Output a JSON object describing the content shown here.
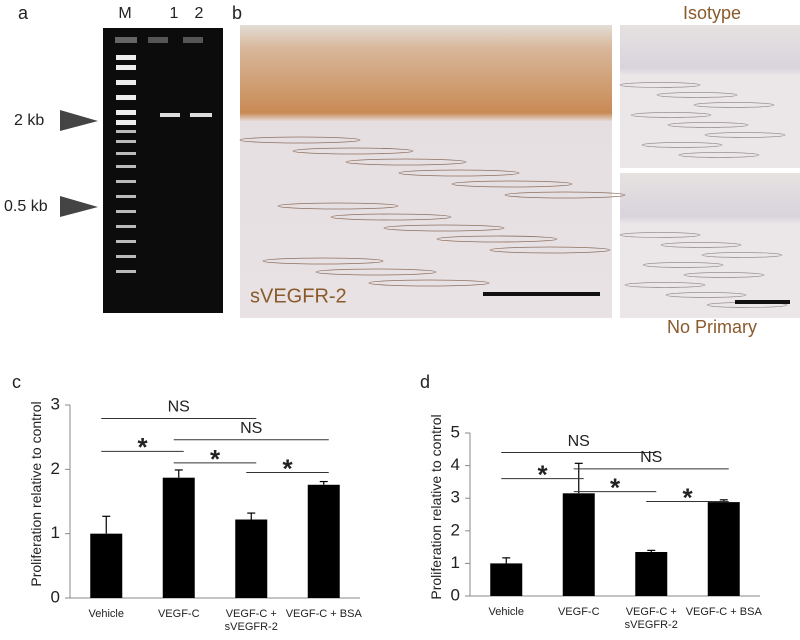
{
  "panel_a": {
    "label": "a",
    "lanes": [
      "M",
      "1",
      "2"
    ],
    "markers": [
      "2 kb",
      "0.5 kb"
    ]
  },
  "panel_b": {
    "label": "b",
    "main_caption": "sVEGFR-2",
    "top_caption": "Isotype",
    "bottom_caption": "No Primary"
  },
  "chart_data": [
    {
      "type": "bar",
      "label": "c",
      "y_label": "Proliferation relative to control",
      "categories": [
        "Vehicle",
        "VEGF-C",
        "VEGF-C + sVEGFR-2",
        "VEGF-C + BSA"
      ],
      "values": [
        1.0,
        1.87,
        1.22,
        1.76
      ],
      "errors": [
        0.27,
        0.12,
        0.1,
        0.05
      ],
      "color": "#000000",
      "ylim": [
        0,
        3
      ],
      "yticks": [
        0,
        1,
        2,
        3
      ],
      "annotations": [
        {
          "text": "NS",
          "from": 0,
          "to": 2
        },
        {
          "text": "*",
          "from": 0,
          "to": 1
        },
        {
          "text": "NS",
          "from": 1,
          "to": 3
        },
        {
          "text": "*",
          "from": 1,
          "to": 2
        },
        {
          "text": "*",
          "from": 2,
          "to": 3
        }
      ]
    },
    {
      "type": "bar",
      "label": "d",
      "y_label": "Proliferation relative to control",
      "categories": [
        "Vehicle",
        "VEGF-C",
        "VEGF-C + sVEGFR-2",
        "VEGF-C + BSA"
      ],
      "values": [
        1.0,
        3.15,
        1.35,
        2.88
      ],
      "errors": [
        0.17,
        0.92,
        0.05,
        0.07
      ],
      "color": "#000000",
      "ylim": [
        0,
        5
      ],
      "yticks": [
        0,
        1,
        2,
        3,
        4,
        5
      ],
      "annotations": [
        {
          "text": "NS",
          "from": 0,
          "to": 2
        },
        {
          "text": "*",
          "from": 0,
          "to": 1
        },
        {
          "text": "NS",
          "from": 1,
          "to": 3
        },
        {
          "text": "*",
          "from": 1,
          "to": 2
        },
        {
          "text": "*",
          "from": 2,
          "to": 3
        }
      ]
    }
  ]
}
